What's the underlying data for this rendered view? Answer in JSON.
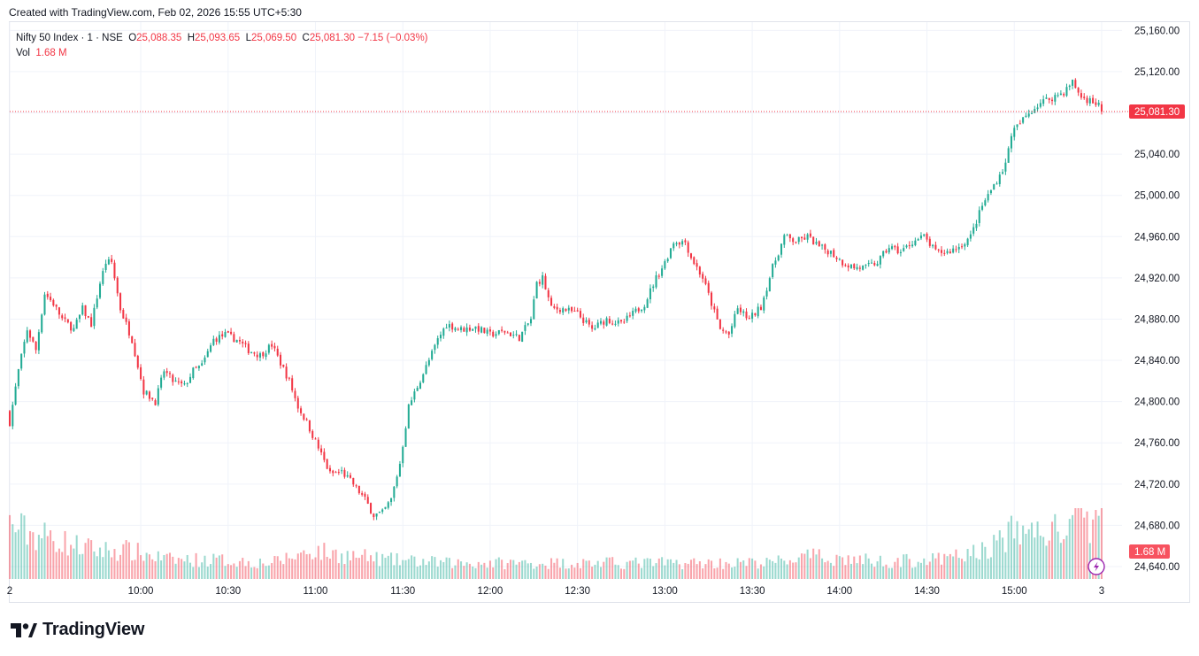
{
  "caption": "Created with TradingView.com, Feb 02, 2026 15:55 UTC+5:30",
  "legend": {
    "symbol": "Nifty 50 Index · 1 · NSE",
    "open_label": "O",
    "open": "25,088.35",
    "high_label": "H",
    "high": "25,093.65",
    "low_label": "L",
    "low": "25,069.50",
    "close_label": "C",
    "close": "25,081.30",
    "change": "−7.15 (−0.03%)",
    "vol_label": "Vol",
    "vol": "1.68 M"
  },
  "brand": "TradingView",
  "colors": {
    "up": "#22ab94",
    "down": "#f23645",
    "grid": "#f0f3fa",
    "text": "#131722"
  },
  "chart_data": {
    "type": "candlestick",
    "price_axis": {
      "ticks": [
        24640,
        24680,
        24720,
        24760,
        24800,
        24840,
        24880,
        24920,
        24960,
        25000,
        25040,
        25080,
        25120,
        25160
      ],
      "tick_labels": [
        "24,640.00",
        "24,680.00",
        "24,720.00",
        "24,760.00",
        "24,800.00",
        "24,840.00",
        "24,880.00",
        "24,920.00",
        "24,960.00",
        "25,000.00",
        "25,040.00",
        "25,080.00",
        "25,120.00",
        "25,160.00"
      ],
      "range": [
        24628,
        25168
      ]
    },
    "time_axis": {
      "labels": [
        "2",
        "10:00",
        "10:30",
        "11:00",
        "11:30",
        "12:00",
        "12:30",
        "13:00",
        "13:30",
        "14:00",
        "14:30",
        "15:00",
        "3"
      ],
      "label_minutes": [
        0,
        45,
        75,
        105,
        135,
        165,
        195,
        225,
        255,
        285,
        315,
        345,
        375
      ],
      "range_minutes": [
        0,
        382
      ]
    },
    "last_price": 25081.3,
    "last_price_label": "25,081.30",
    "last_volume_label": "1.68 M",
    "close_path": [
      [
        0,
        24780
      ],
      [
        3,
        24830
      ],
      [
        6,
        24870
      ],
      [
        9,
        24850
      ],
      [
        12,
        24905
      ],
      [
        15,
        24895
      ],
      [
        18,
        24880
      ],
      [
        22,
        24870
      ],
      [
        25,
        24890
      ],
      [
        28,
        24875
      ],
      [
        31,
        24915
      ],
      [
        33,
        24935
      ],
      [
        35,
        24935
      ],
      [
        38,
        24890
      ],
      [
        42,
        24860
      ],
      [
        46,
        24810
      ],
      [
        50,
        24800
      ],
      [
        53,
        24830
      ],
      [
        56,
        24820
      ],
      [
        60,
        24815
      ],
      [
        63,
        24830
      ],
      [
        66,
        24835
      ],
      [
        70,
        24860
      ],
      [
        74,
        24865
      ],
      [
        78,
        24860
      ],
      [
        82,
        24850
      ],
      [
        86,
        24845
      ],
      [
        90,
        24855
      ],
      [
        96,
        24820
      ],
      [
        99,
        24795
      ],
      [
        102,
        24780
      ],
      [
        106,
        24755
      ],
      [
        110,
        24730
      ],
      [
        114,
        24732
      ],
      [
        118,
        24720
      ],
      [
        122,
        24705
      ],
      [
        125,
        24690
      ],
      [
        128,
        24692
      ],
      [
        131,
        24705
      ],
      [
        134,
        24740
      ],
      [
        137,
        24795
      ],
      [
        140,
        24815
      ],
      [
        144,
        24840
      ],
      [
        147,
        24860
      ],
      [
        150,
        24875
      ],
      [
        155,
        24870
      ],
      [
        160,
        24872
      ],
      [
        165,
        24865
      ],
      [
        170,
        24868
      ],
      [
        175,
        24862
      ],
      [
        179,
        24880
      ],
      [
        181,
        24915
      ],
      [
        183,
        24920
      ],
      [
        186,
        24890
      ],
      [
        190,
        24890
      ],
      [
        195,
        24885
      ],
      [
        200,
        24870
      ],
      [
        205,
        24880
      ],
      [
        210,
        24875
      ],
      [
        214,
        24885
      ],
      [
        218,
        24895
      ],
      [
        222,
        24920
      ],
      [
        225,
        24935
      ],
      [
        228,
        24955
      ],
      [
        232,
        24955
      ],
      [
        234,
        24940
      ],
      [
        238,
        24920
      ],
      [
        241,
        24895
      ],
      [
        244,
        24870
      ],
      [
        247,
        24865
      ],
      [
        250,
        24890
      ],
      [
        254,
        24880
      ],
      [
        258,
        24892
      ],
      [
        262,
        24930
      ],
      [
        266,
        24960
      ],
      [
        270,
        24955
      ],
      [
        274,
        24960
      ],
      [
        278,
        24950
      ],
      [
        282,
        24945
      ],
      [
        286,
        24935
      ],
      [
        290,
        24930
      ],
      [
        294,
        24930
      ],
      [
        298,
        24935
      ],
      [
        302,
        24950
      ],
      [
        306,
        24945
      ],
      [
        310,
        24955
      ],
      [
        314,
        24960
      ],
      [
        318,
        24945
      ],
      [
        322,
        24945
      ],
      [
        326,
        24950
      ],
      [
        330,
        24960
      ],
      [
        334,
        24990
      ],
      [
        338,
        25010
      ],
      [
        342,
        25030
      ],
      [
        344,
        25060
      ],
      [
        347,
        25070
      ],
      [
        350,
        25080
      ],
      [
        354,
        25090
      ],
      [
        358,
        25095
      ],
      [
        362,
        25100
      ],
      [
        365,
        25110
      ],
      [
        368,
        25095
      ],
      [
        371,
        25092
      ],
      [
        374,
        25088
      ],
      [
        375,
        25081
      ]
    ],
    "volume_profile": [
      [
        0,
        1.7
      ],
      [
        8,
        1.4
      ],
      [
        15,
        1.3
      ],
      [
        20,
        1.1
      ],
      [
        30,
        0.9
      ],
      [
        40,
        0.9
      ],
      [
        55,
        0.6
      ],
      [
        70,
        0.6
      ],
      [
        90,
        0.5
      ],
      [
        104,
        0.9
      ],
      [
        110,
        0.8
      ],
      [
        130,
        0.6
      ],
      [
        150,
        0.5
      ],
      [
        180,
        0.5
      ],
      [
        230,
        0.5
      ],
      [
        260,
        0.5
      ],
      [
        275,
        0.7
      ],
      [
        300,
        0.55
      ],
      [
        320,
        0.6
      ],
      [
        335,
        0.9
      ],
      [
        345,
        1.5
      ],
      [
        360,
        1.5
      ],
      [
        370,
        1.8
      ],
      [
        375,
        1.68
      ]
    ],
    "volume_max": 2.0
  }
}
